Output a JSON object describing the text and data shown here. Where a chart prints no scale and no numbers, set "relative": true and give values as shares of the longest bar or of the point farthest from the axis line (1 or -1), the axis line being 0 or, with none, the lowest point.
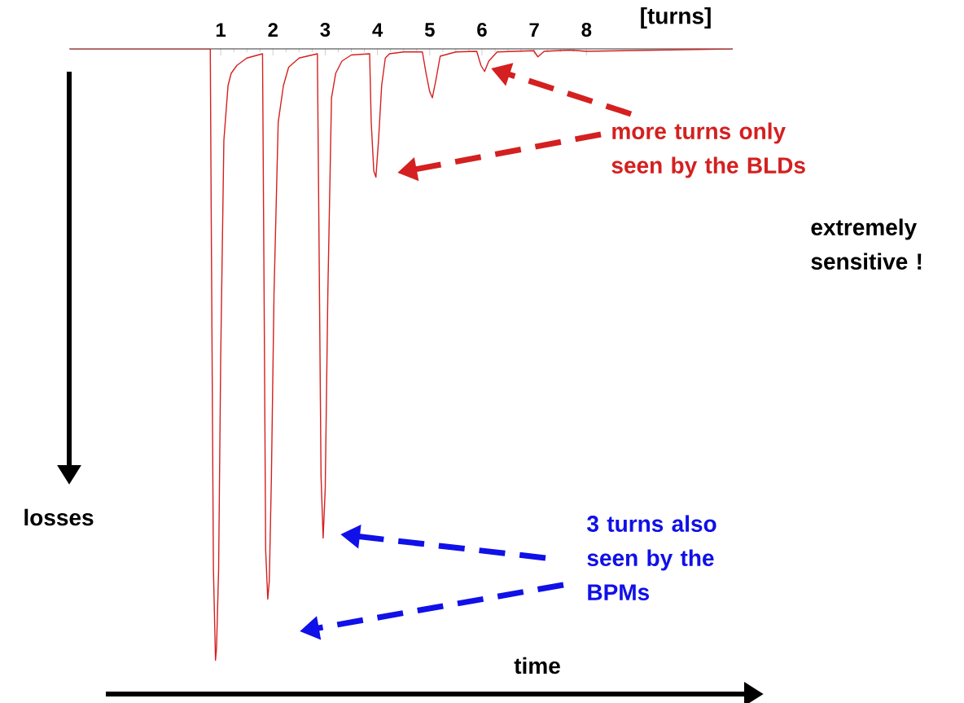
{
  "chart_data": {
    "type": "line",
    "relative": true,
    "xlabel": "time",
    "ylabel": "losses",
    "xlim": [
      -1.9,
      10.8
    ],
    "xticks": [
      1,
      2,
      3,
      4,
      5,
      6,
      7,
      8
    ],
    "annotations": [
      "[turns]",
      "more turns only seen by the BLDs",
      "extremely sensitive !",
      "3 turns also seen by the BPMs"
    ],
    "series": [
      {
        "color": "#d42020",
        "x": [
          -1.88,
          0.8,
          0.82,
          0.86,
          0.9,
          0.92,
          0.96,
          1.0,
          1.06,
          1.14,
          1.2,
          1.31,
          1.5,
          1.8,
          1.83,
          1.86,
          1.9,
          1.93,
          1.97,
          2.02,
          2.1,
          2.2,
          2.3,
          2.5,
          2.85,
          2.88,
          2.92,
          2.96,
          3.0,
          3.05,
          3.12,
          3.2,
          3.32,
          3.5,
          3.85,
          3.88,
          3.93,
          3.97,
          4.02,
          4.08,
          4.15,
          4.23,
          4.5,
          4.86,
          4.93,
          5.0,
          5.05,
          5.12,
          5.2,
          5.5,
          5.9,
          5.98,
          6.05,
          6.13,
          6.29,
          6.99,
          7.07,
          7.19,
          7.69,
          8.0,
          10.8
        ],
        "values": [
          0,
          0,
          -0.3,
          -0.85,
          -1,
          -0.98,
          -0.85,
          -0.5,
          -0.15,
          -0.06,
          -0.04,
          -0.027,
          -0.015,
          -0.008,
          -0.4,
          -0.82,
          -0.9,
          -0.87,
          -0.7,
          -0.4,
          -0.12,
          -0.06,
          -0.03,
          -0.015,
          -0.008,
          -0.3,
          -0.7,
          -0.8,
          -0.72,
          -0.4,
          -0.08,
          -0.04,
          -0.02,
          -0.01,
          -0.008,
          -0.12,
          -0.2,
          -0.21,
          -0.15,
          -0.06,
          -0.015,
          -0.008,
          -0.005,
          -0.005,
          -0.04,
          -0.07,
          -0.08,
          -0.05,
          -0.012,
          -0.005,
          -0.004,
          -0.027,
          -0.037,
          -0.02,
          -0.005,
          -0.003,
          -0.013,
          -0.004,
          -0.002,
          -0.004,
          0
        ]
      }
    ]
  }
}
